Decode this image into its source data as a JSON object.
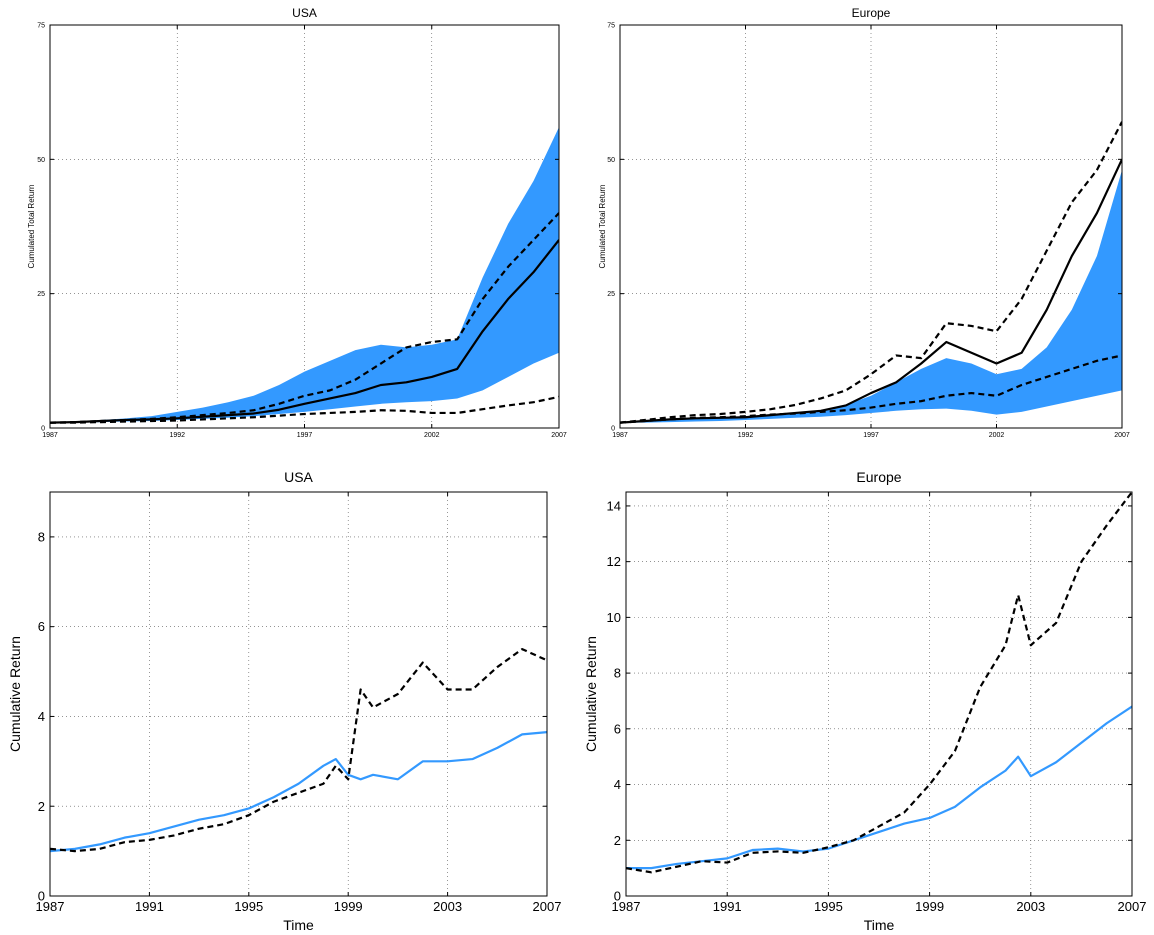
{
  "chart_data": [
    {
      "type": "line",
      "title": "USA",
      "xlabel": "",
      "ylabel": "Cumulated Total Return",
      "xlim": [
        1987,
        2007
      ],
      "ylim": [
        0,
        75
      ],
      "xticks": [
        1987,
        1992,
        1997,
        2002,
        2007
      ],
      "yticks": [
        0,
        25,
        50,
        75
      ],
      "grid": true,
      "band_color": "#3399ff",
      "x": [
        1987,
        1988,
        1989,
        1990,
        1991,
        1992,
        1993,
        1994,
        1995,
        1996,
        1997,
        1998,
        1999,
        2000,
        2001,
        2002,
        2003,
        2004,
        2005,
        2006,
        2007
      ],
      "band": {
        "lower": [
          1.0,
          1.0,
          1.1,
          1.2,
          1.3,
          1.5,
          1.7,
          1.9,
          2.2,
          2.6,
          3.0,
          3.5,
          4.0,
          4.5,
          4.8,
          5.0,
          5.5,
          7.0,
          9.5,
          12.0,
          14.0
        ],
        "upper": [
          1.0,
          1.2,
          1.5,
          1.8,
          2.2,
          3.0,
          3.8,
          4.8,
          6.0,
          8.0,
          10.5,
          12.5,
          14.5,
          15.5,
          15.0,
          15.5,
          16.5,
          28.0,
          38.0,
          46.0,
          56.0
        ]
      },
      "series": [
        {
          "style": "solid",
          "values": [
            1.0,
            1.1,
            1.3,
            1.5,
            1.6,
            1.8,
            2.1,
            2.4,
            2.7,
            3.4,
            4.5,
            5.5,
            6.5,
            8.0,
            8.5,
            9.5,
            11.0,
            18.0,
            24.0,
            29.0,
            35.0
          ]
        },
        {
          "style": "dashed",
          "values": [
            1.0,
            1.1,
            1.3,
            1.5,
            1.7,
            2.0,
            2.4,
            2.8,
            3.3,
            4.5,
            6.0,
            7.0,
            9.0,
            12.0,
            15.0,
            16.0,
            16.5,
            24.0,
            30.0,
            35.0,
            40.0
          ]
        },
        {
          "style": "dashed",
          "values": [
            1.0,
            1.0,
            1.1,
            1.2,
            1.3,
            1.4,
            1.6,
            1.8,
            2.0,
            2.3,
            2.6,
            2.8,
            3.0,
            3.3,
            3.2,
            2.8,
            2.8,
            3.5,
            4.2,
            4.8,
            5.8
          ]
        }
      ]
    },
    {
      "type": "line",
      "title": "Europe",
      "xlabel": "",
      "ylabel": "Cumulated Total Return",
      "xlim": [
        1987,
        2007
      ],
      "ylim": [
        0,
        75
      ],
      "xticks": [
        1987,
        1992,
        1997,
        2002,
        2007
      ],
      "yticks": [
        0,
        25,
        50,
        75
      ],
      "grid": true,
      "band_color": "#3399ff",
      "x": [
        1987,
        1988,
        1989,
        1990,
        1991,
        1992,
        1993,
        1994,
        1995,
        1996,
        1997,
        1998,
        1999,
        2000,
        2001,
        2002,
        2003,
        2004,
        2005,
        2006,
        2007
      ],
      "band": {
        "lower": [
          1.0,
          1.0,
          1.1,
          1.2,
          1.3,
          1.5,
          1.7,
          1.9,
          2.1,
          2.4,
          2.8,
          3.2,
          3.5,
          3.6,
          3.2,
          2.5,
          3.0,
          4.0,
          5.0,
          6.0,
          7.0
        ],
        "upper": [
          1.0,
          1.3,
          1.6,
          1.9,
          2.0,
          2.2,
          2.5,
          2.8,
          3.3,
          4.3,
          6.0,
          8.5,
          11.0,
          13.0,
          12.0,
          10.0,
          11.0,
          15.0,
          22.0,
          32.0,
          48.0
        ]
      },
      "series": [
        {
          "style": "solid",
          "values": [
            1.0,
            1.3,
            1.6,
            1.8,
            1.9,
            2.0,
            2.4,
            2.8,
            3.2,
            4.2,
            6.5,
            8.5,
            12.0,
            16.0,
            14.0,
            12.0,
            14.0,
            22.0,
            32.0,
            40.0,
            50.0
          ]
        },
        {
          "style": "dashed",
          "values": [
            1.0,
            1.5,
            2.0,
            2.4,
            2.6,
            3.0,
            3.5,
            4.3,
            5.5,
            7.0,
            10.0,
            13.5,
            13.0,
            19.5,
            19.0,
            18.0,
            24.0,
            33.0,
            42.0,
            48.0,
            57.0
          ]
        },
        {
          "style": "dashed",
          "values": [
            1.0,
            1.3,
            1.6,
            1.9,
            2.0,
            2.2,
            2.5,
            2.7,
            3.0,
            3.3,
            3.8,
            4.5,
            5.0,
            6.0,
            6.5,
            6.0,
            8.0,
            9.5,
            11.0,
            12.5,
            13.5
          ]
        }
      ]
    },
    {
      "type": "line",
      "title": "USA",
      "xlabel": "Time",
      "ylabel": "Cumulative Return",
      "xlim": [
        1987,
        2007
      ],
      "ylim": [
        0,
        9
      ],
      "xticks": [
        1987,
        1991,
        1995,
        1999,
        2003,
        2007
      ],
      "yticks": [
        0,
        2,
        4,
        6,
        8
      ],
      "grid": true,
      "x": [
        1987,
        1988,
        1989,
        1990,
        1991,
        1992,
        1993,
        1994,
        1995,
        1996,
        1997,
        1998,
        1998.5,
        1999,
        1999.5,
        2000,
        2001,
        2002,
        2003,
        2004,
        2005,
        2006,
        2007
      ],
      "series": [
        {
          "style": "solid",
          "color": "#3399ff",
          "values": [
            1.0,
            1.05,
            1.15,
            1.3,
            1.4,
            1.55,
            1.7,
            1.8,
            1.95,
            2.2,
            2.5,
            2.9,
            3.05,
            2.7,
            2.6,
            2.7,
            2.6,
            3.0,
            3.0,
            3.05,
            3.3,
            3.6,
            3.65
          ]
        },
        {
          "style": "dashed",
          "color": "#000000",
          "values": [
            1.05,
            1.0,
            1.05,
            1.2,
            1.25,
            1.35,
            1.5,
            1.6,
            1.8,
            2.1,
            2.3,
            2.5,
            2.9,
            2.6,
            4.6,
            4.2,
            4.5,
            5.2,
            4.6,
            4.6,
            5.1,
            5.5,
            5.25
          ]
        }
      ]
    },
    {
      "type": "line",
      "title": "Europe",
      "xlabel": "Time",
      "ylabel": "Cumulative Return",
      "xlim": [
        1987,
        2007
      ],
      "ylim": [
        0,
        14.5
      ],
      "xticks": [
        1987,
        1991,
        1995,
        1999,
        2003,
        2007
      ],
      "yticks": [
        0,
        2,
        4,
        6,
        8,
        10,
        12,
        14
      ],
      "grid": true,
      "x": [
        1987,
        1988,
        1989,
        1990,
        1991,
        1992,
        1993,
        1994,
        1995,
        1996,
        1997,
        1998,
        1999,
        2000,
        2001,
        2002,
        2002.5,
        2003,
        2004,
        2005,
        2006,
        2007
      ],
      "series": [
        {
          "style": "solid",
          "color": "#3399ff",
          "values": [
            1.0,
            1.0,
            1.15,
            1.25,
            1.35,
            1.65,
            1.7,
            1.6,
            1.7,
            2.0,
            2.3,
            2.6,
            2.8,
            3.2,
            3.9,
            4.5,
            5.0,
            4.3,
            4.8,
            5.5,
            6.2,
            6.8
          ]
        },
        {
          "style": "dashed",
          "color": "#000000",
          "values": [
            1.0,
            0.85,
            1.05,
            1.25,
            1.2,
            1.55,
            1.6,
            1.55,
            1.75,
            2.0,
            2.5,
            3.0,
            4.0,
            5.2,
            7.5,
            9.0,
            10.8,
            9.0,
            9.8,
            12.0,
            13.3,
            14.5
          ]
        }
      ]
    }
  ]
}
